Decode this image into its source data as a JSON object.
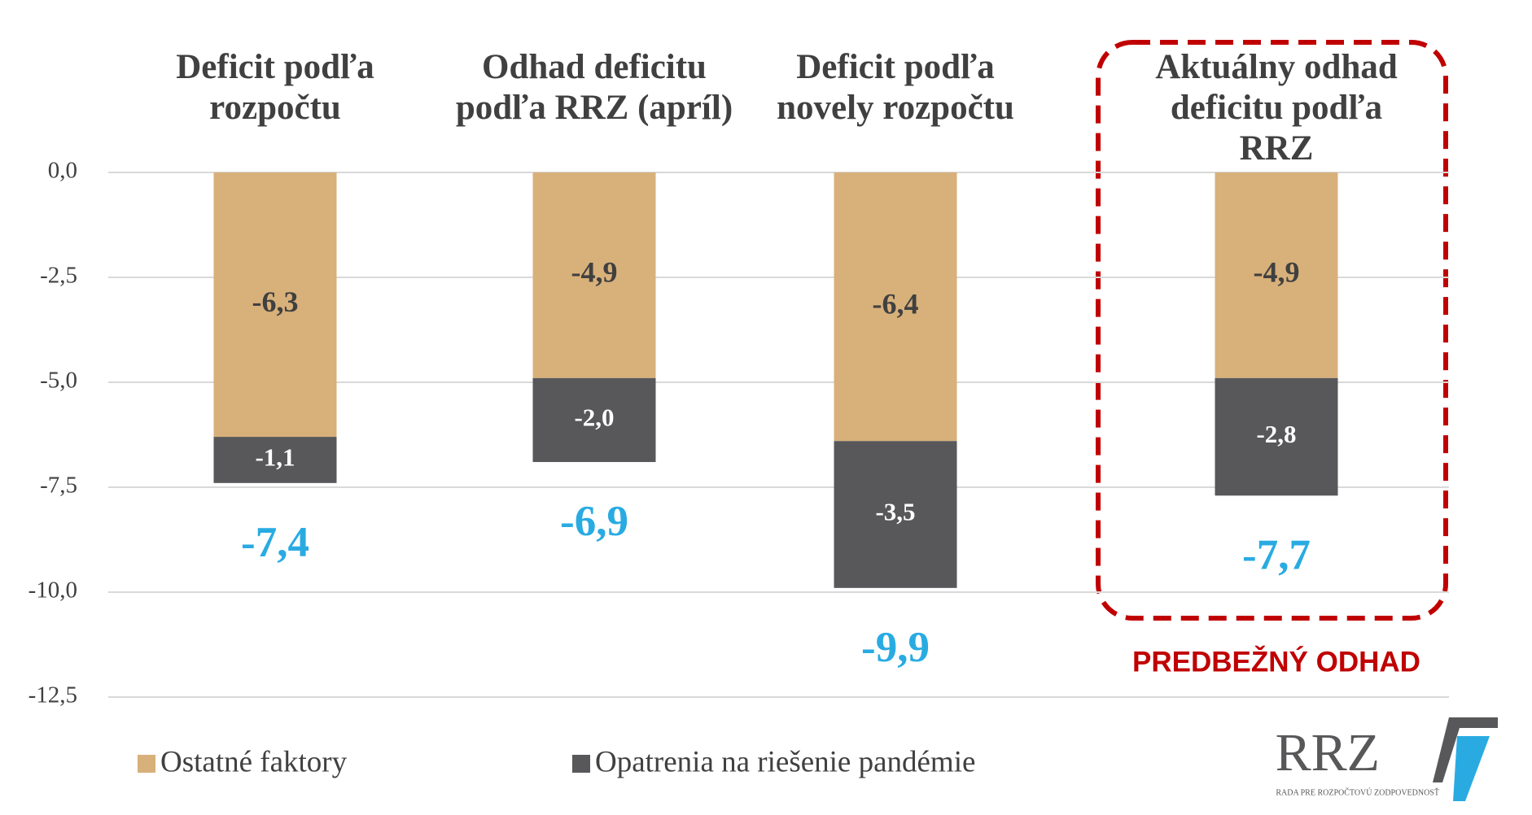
{
  "chart_data": {
    "type": "stacked_bar",
    "categories": [
      "Deficit podľa rozpočtu",
      "Odhad deficitu podľa RRZ (apríl)",
      "Deficit podľa novely rozpočtu",
      "Aktuálny odhad deficitu podľa RRZ"
    ],
    "series": [
      {
        "name": "Ostatné faktory",
        "color": "#d8b07a",
        "values": [
          -6.3,
          -4.9,
          -6.4,
          -4.9
        ],
        "value_labels": [
          "-6,3",
          "-4,9",
          "-6,4",
          "-4,9"
        ]
      },
      {
        "name": "Opatrenia na riešenie pandémie",
        "color": "#58585a",
        "values": [
          -1.1,
          -2.0,
          -3.5,
          -2.8
        ],
        "value_labels": [
          "-1,1",
          "-2,0",
          "-3,5",
          "-2,8"
        ]
      }
    ],
    "totals": {
      "color": "#29abe2",
      "values": [
        -7.4,
        -6.9,
        -9.9,
        -7.7
      ],
      "value_labels": [
        "-7,4",
        "-6,9",
        "-9,9",
        "-7,7"
      ]
    },
    "ylim": [
      -12.5,
      0
    ],
    "yticks": [
      {
        "value": 0,
        "label": "0,0"
      },
      {
        "value": -2.5,
        "label": "-2,5"
      },
      {
        "value": -5,
        "label": "-5,0"
      },
      {
        "value": -7.5,
        "label": "-7,5"
      },
      {
        "value": -10,
        "label": "-10,0"
      },
      {
        "value": -12.5,
        "label": "-12,5"
      }
    ],
    "grid": true,
    "legend": "bottom-left",
    "annotation": {
      "text": "PREDBEŽNÝ ODHAD",
      "color": "#c00000",
      "category": 3
    },
    "logo": {
      "text": "RRZ",
      "subtext": "RADA PRE ROZPOČTOVÚ ZODPOVEDNOSŤ"
    }
  }
}
